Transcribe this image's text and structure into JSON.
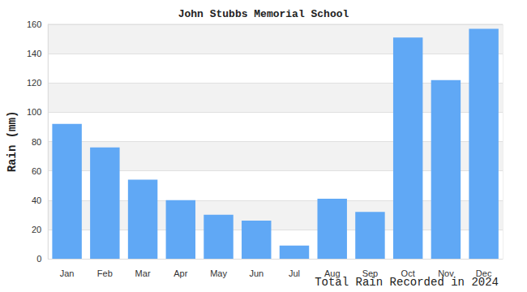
{
  "chart_data": {
    "type": "bar",
    "title": "John Stubbs Memorial School",
    "x_label": "Total Rain Recorded in 2024",
    "y_label": "Rain (mm)",
    "categories": [
      "Jan",
      "Feb",
      "Mar",
      "Apr",
      "May",
      "Jun",
      "Jul",
      "Aug",
      "Sep",
      "Oct",
      "Nov",
      "Dec"
    ],
    "values": [
      92,
      76,
      54,
      40,
      30,
      26,
      9,
      41,
      32,
      151,
      122,
      157
    ],
    "color": "#60a8f5",
    "ylim": [
      0,
      160
    ],
    "yticks": [
      0,
      20,
      40,
      60,
      80,
      100,
      120,
      140,
      160
    ],
    "grid": true
  }
}
